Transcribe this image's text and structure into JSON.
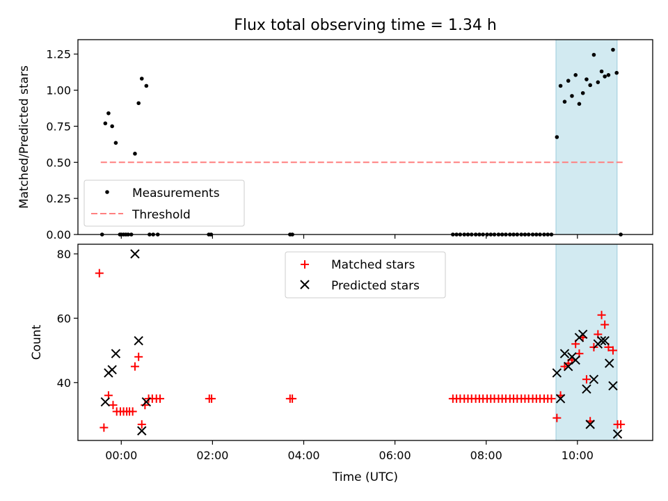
{
  "chart_data": {
    "type": "scatter",
    "title": "Flux total observing time = 1.34 h",
    "xlabel": "Time (UTC)",
    "xticks": [
      "00:00",
      "02:00",
      "04:00",
      "06:00",
      "08:00",
      "10:00"
    ],
    "xlim_hours": [
      -0.95,
      11.65
    ],
    "highlight_span_hours": [
      9.53,
      10.87
    ],
    "panels": [
      {
        "ylabel": "Matched/Predicted stars",
        "ylim": [
          0,
          1.35
        ],
        "yticks": [
          "0.00",
          "0.25",
          "0.50",
          "0.75",
          "1.00",
          "1.25"
        ],
        "threshold": {
          "name": "Threshold",
          "y": 0.5,
          "x_range_hours": [
            -0.45,
            11.0
          ],
          "color": "#ff7f7f"
        },
        "legend": {
          "position": "lower-left",
          "entries": [
            "Measurements",
            "Threshold"
          ]
        },
        "series": [
          {
            "name": "Measurements",
            "marker": "dot",
            "color": "#000000",
            "points": [
              [
                -0.42,
                0.0
              ],
              [
                -0.35,
                0.77
              ],
              [
                -0.28,
                0.84
              ],
              [
                -0.2,
                0.75
              ],
              [
                -0.12,
                0.635
              ],
              [
                -0.03,
                0.0
              ],
              [
                0.0,
                0.0
              ],
              [
                0.05,
                0.0
              ],
              [
                0.1,
                0.0
              ],
              [
                0.15,
                0.0
              ],
              [
                0.22,
                0.0
              ],
              [
                0.3,
                0.56
              ],
              [
                0.38,
                0.91
              ],
              [
                0.45,
                1.08
              ],
              [
                0.55,
                1.03
              ],
              [
                0.62,
                0.0
              ],
              [
                0.7,
                0.0
              ],
              [
                0.8,
                0.0
              ],
              [
                1.92,
                0.0
              ],
              [
                1.97,
                0.0
              ],
              [
                3.7,
                0.0
              ],
              [
                3.75,
                0.0
              ],
              [
                7.27,
                0.0
              ],
              [
                7.35,
                0.0
              ],
              [
                7.43,
                0.0
              ],
              [
                7.52,
                0.0
              ],
              [
                7.6,
                0.0
              ],
              [
                7.68,
                0.0
              ],
              [
                7.77,
                0.0
              ],
              [
                7.85,
                0.0
              ],
              [
                7.93,
                0.0
              ],
              [
                8.02,
                0.0
              ],
              [
                8.1,
                0.0
              ],
              [
                8.18,
                0.0
              ],
              [
                8.27,
                0.0
              ],
              [
                8.35,
                0.0
              ],
              [
                8.43,
                0.0
              ],
              [
                8.52,
                0.0
              ],
              [
                8.6,
                0.0
              ],
              [
                8.68,
                0.0
              ],
              [
                8.77,
                0.0
              ],
              [
                8.85,
                0.0
              ],
              [
                8.93,
                0.0
              ],
              [
                9.02,
                0.0
              ],
              [
                9.1,
                0.0
              ],
              [
                9.18,
                0.0
              ],
              [
                9.27,
                0.0
              ],
              [
                9.35,
                0.0
              ],
              [
                9.43,
                0.0
              ],
              [
                9.55,
                0.675
              ],
              [
                9.63,
                1.03
              ],
              [
                9.72,
                0.92
              ],
              [
                9.8,
                1.065
              ],
              [
                9.88,
                0.96
              ],
              [
                9.96,
                1.105
              ],
              [
                10.04,
                0.905
              ],
              [
                10.12,
                0.98
              ],
              [
                10.2,
                1.075
              ],
              [
                10.28,
                1.035
              ],
              [
                10.36,
                1.245
              ],
              [
                10.45,
                1.055
              ],
              [
                10.53,
                1.13
              ],
              [
                10.6,
                1.095
              ],
              [
                10.68,
                1.105
              ],
              [
                10.78,
                1.28
              ],
              [
                10.86,
                1.12
              ],
              [
                10.95,
                0.0
              ]
            ]
          }
        ]
      },
      {
        "ylabel": "Count",
        "ylim": [
          22,
          83
        ],
        "yticks": [
          "40",
          "60",
          "80"
        ],
        "legend": {
          "position": "upper-center",
          "entries": [
            "Matched stars",
            "Predicted stars"
          ]
        },
        "series": [
          {
            "name": "Matched stars",
            "marker": "plus",
            "color": "#ff0000",
            "points": [
              [
                -0.48,
                74
              ],
              [
                -0.38,
                26
              ],
              [
                -0.28,
                36
              ],
              [
                -0.18,
                33
              ],
              [
                -0.1,
                31
              ],
              [
                -0.02,
                31
              ],
              [
                0.05,
                31
              ],
              [
                0.12,
                31
              ],
              [
                0.18,
                31
              ],
              [
                0.25,
                31
              ],
              [
                0.3,
                45
              ],
              [
                0.38,
                48
              ],
              [
                0.45,
                27
              ],
              [
                0.52,
                33
              ],
              [
                0.6,
                35
              ],
              [
                0.68,
                35
              ],
              [
                0.77,
                35
              ],
              [
                0.85,
                35
              ],
              [
                1.93,
                35
              ],
              [
                1.98,
                35
              ],
              [
                3.7,
                35
              ],
              [
                3.75,
                35
              ],
              [
                7.27,
                35
              ],
              [
                7.35,
                35
              ],
              [
                7.43,
                35
              ],
              [
                7.52,
                35
              ],
              [
                7.6,
                35
              ],
              [
                7.68,
                35
              ],
              [
                7.77,
                35
              ],
              [
                7.85,
                35
              ],
              [
                7.93,
                35
              ],
              [
                8.02,
                35
              ],
              [
                8.1,
                35
              ],
              [
                8.18,
                35
              ],
              [
                8.27,
                35
              ],
              [
                8.35,
                35
              ],
              [
                8.43,
                35
              ],
              [
                8.52,
                35
              ],
              [
                8.6,
                35
              ],
              [
                8.68,
                35
              ],
              [
                8.77,
                35
              ],
              [
                8.85,
                35
              ],
              [
                8.93,
                35
              ],
              [
                9.02,
                35
              ],
              [
                9.1,
                35
              ],
              [
                9.18,
                35
              ],
              [
                9.27,
                35
              ],
              [
                9.35,
                35
              ],
              [
                9.43,
                35
              ],
              [
                9.55,
                29
              ],
              [
                9.63,
                36
              ],
              [
                9.72,
                45
              ],
              [
                9.8,
                46
              ],
              [
                9.88,
                47
              ],
              [
                9.96,
                52
              ],
              [
                10.04,
                49
              ],
              [
                10.12,
                54
              ],
              [
                10.2,
                41
              ],
              [
                10.28,
                28
              ],
              [
                10.36,
                51
              ],
              [
                10.45,
                55
              ],
              [
                10.53,
                61
              ],
              [
                10.6,
                58
              ],
              [
                10.68,
                51
              ],
              [
                10.78,
                50
              ],
              [
                10.88,
                27
              ],
              [
                10.95,
                27
              ]
            ]
          },
          {
            "name": "Predicted stars",
            "marker": "x",
            "color": "#000000",
            "points": [
              [
                -0.35,
                34
              ],
              [
                -0.28,
                43
              ],
              [
                -0.2,
                44
              ],
              [
                -0.12,
                49
              ],
              [
                0.3,
                80
              ],
              [
                0.38,
                53
              ],
              [
                0.45,
                25
              ],
              [
                0.55,
                34
              ],
              [
                9.55,
                43
              ],
              [
                9.63,
                35
              ],
              [
                9.72,
                49
              ],
              [
                9.8,
                45
              ],
              [
                9.88,
                48
              ],
              [
                9.96,
                47
              ],
              [
                10.04,
                54
              ],
              [
                10.12,
                55
              ],
              [
                10.2,
                38
              ],
              [
                10.28,
                27
              ],
              [
                10.36,
                41
              ],
              [
                10.45,
                52
              ],
              [
                10.53,
                53
              ],
              [
                10.6,
                53
              ],
              [
                10.7,
                46
              ],
              [
                10.78,
                39
              ],
              [
                10.88,
                24
              ]
            ]
          }
        ]
      }
    ]
  }
}
